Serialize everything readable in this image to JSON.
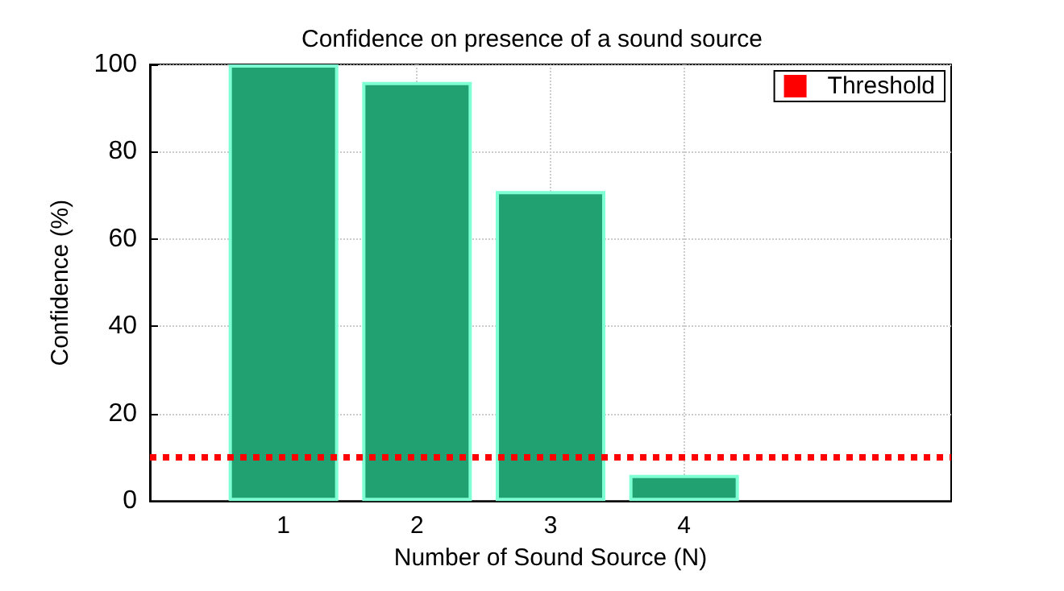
{
  "chart_data": {
    "type": "bar",
    "title": "Confidence on presence of a sound source",
    "xlabel": "Number of Sound Source (N)",
    "ylabel": "Confidence (%)",
    "x": [
      1,
      2,
      3,
      4
    ],
    "values": [
      100,
      96,
      71,
      6
    ],
    "color": "#21a072",
    "xlim": [
      0,
      6
    ],
    "xticks": [
      1,
      2,
      3,
      4
    ],
    "ylim": [
      0,
      100
    ],
    "yticks": [
      0,
      20,
      40,
      60,
      80,
      100
    ],
    "ref_lines": [
      {
        "axis": "y",
        "value": 10,
        "label": "Threshold",
        "color": "#ff0000",
        "line_style": "dotted"
      }
    ],
    "grid": true,
    "legend": "top right"
  }
}
